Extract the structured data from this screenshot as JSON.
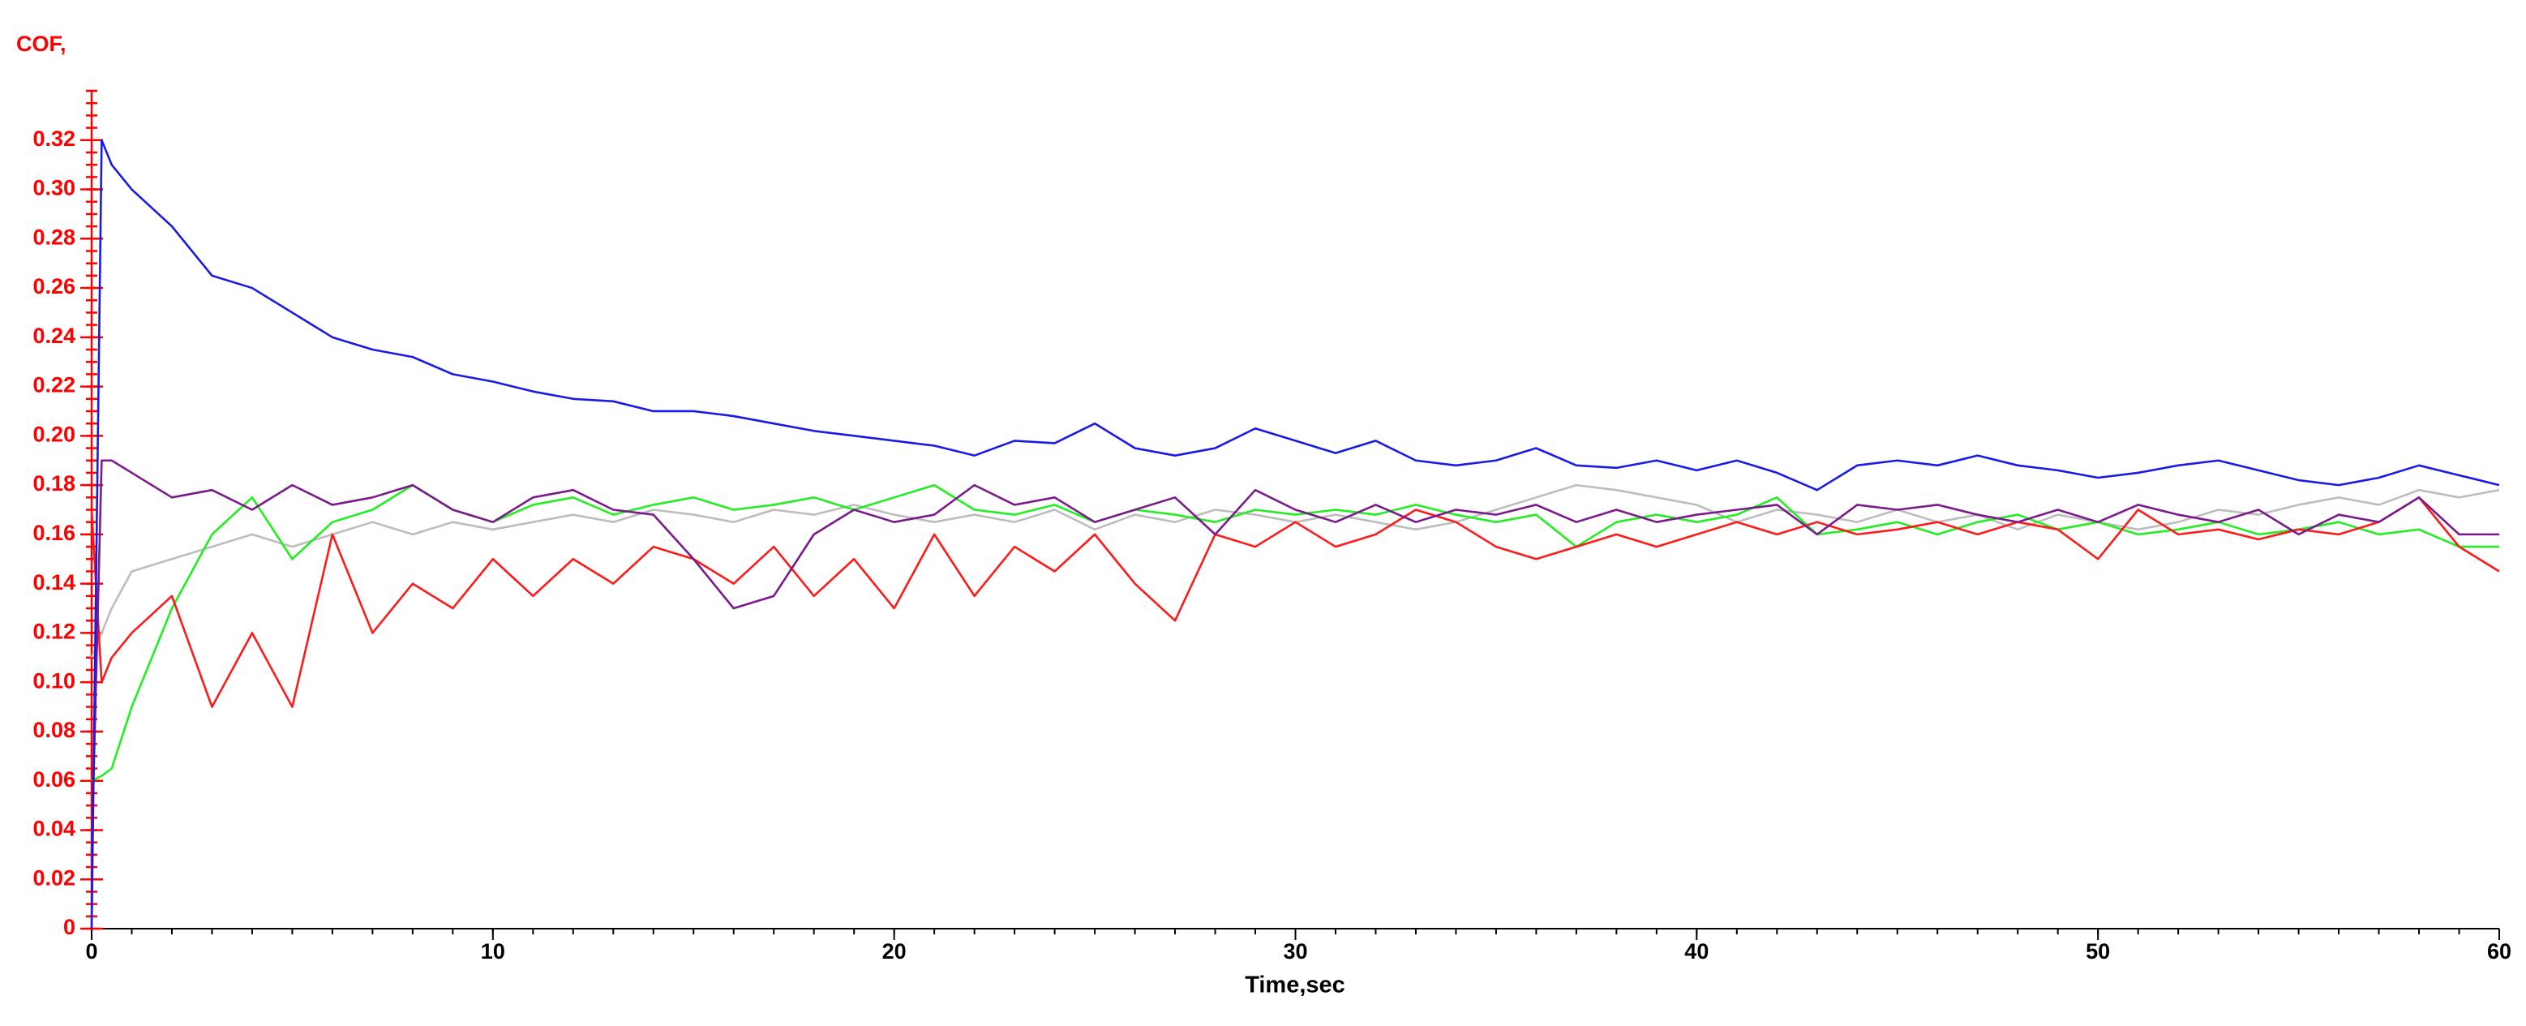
{
  "chart_data": {
    "type": "line",
    "y_label": "COF,",
    "x_label": "Time,sec",
    "xlim": [
      0,
      60
    ],
    "xticks": [
      0,
      10,
      20,
      30,
      40,
      50,
      60
    ],
    "ylim": [
      0,
      0.34
    ],
    "yticks": [
      0,
      0.02,
      0.04,
      0.06,
      0.08,
      {
        "value": 0.1,
        "label": "0.10"
      },
      0.12,
      0.14,
      0.16,
      0.18,
      {
        "value": 0.2,
        "label": "0.20"
      },
      0.22,
      0.24,
      0.26,
      0.28,
      {
        "value": 0.3,
        "label": "0.30"
      },
      0.32
    ],
    "x": [
      0,
      0.25,
      0.5,
      1,
      2,
      3,
      4,
      5,
      6,
      7,
      8,
      9,
      10,
      11,
      12,
      13,
      14,
      15,
      16,
      17,
      18,
      19,
      20,
      21,
      22,
      23,
      24,
      25,
      26,
      27,
      28,
      29,
      30,
      31,
      32,
      33,
      34,
      35,
      36,
      37,
      38,
      39,
      40,
      41,
      42,
      43,
      44,
      45,
      46,
      47,
      48,
      49,
      50,
      51,
      52,
      53,
      54,
      55,
      56,
      57,
      58,
      59,
      60
    ],
    "series": [
      {
        "color": "#bdbdbd",
        "values": [
          0.11,
          0.12,
          0.13,
          0.145,
          0.15,
          0.155,
          0.16,
          0.155,
          0.16,
          0.165,
          0.16,
          0.165,
          0.162,
          0.165,
          0.168,
          0.165,
          0.17,
          0.168,
          0.165,
          0.17,
          0.168,
          0.172,
          0.168,
          0.165,
          0.168,
          0.165,
          0.17,
          0.162,
          0.168,
          0.165,
          0.17,
          0.168,
          0.165,
          0.168,
          0.165,
          0.162,
          0.165,
          0.17,
          0.175,
          0.18,
          0.178,
          0.175,
          0.172,
          0.165,
          0.17,
          0.168,
          0.165,
          0.17,
          0.165,
          0.168,
          0.162,
          0.168,
          0.165,
          0.162,
          0.165,
          0.17,
          0.168,
          0.172,
          0.175,
          0.172,
          0.178,
          0.175,
          0.178
        ]
      },
      {
        "color": "#22ee22",
        "values": [
          0.06,
          0.062,
          0.065,
          0.09,
          0.13,
          0.16,
          0.175,
          0.15,
          0.165,
          0.17,
          0.18,
          0.17,
          0.165,
          0.172,
          0.175,
          0.168,
          0.172,
          0.175,
          0.17,
          0.172,
          0.175,
          0.17,
          0.175,
          0.18,
          0.17,
          0.168,
          0.172,
          0.165,
          0.17,
          0.168,
          0.165,
          0.17,
          0.168,
          0.17,
          0.168,
          0.172,
          0.168,
          0.165,
          0.168,
          0.155,
          0.165,
          0.168,
          0.165,
          0.168,
          0.175,
          0.16,
          0.162,
          0.165,
          0.16,
          0.165,
          0.168,
          0.162,
          0.165,
          0.16,
          0.162,
          0.165,
          0.16,
          0.162,
          0.165,
          0.16,
          0.162,
          0.155,
          0.155
        ]
      },
      {
        "color": "#ff1a1a",
        "values": [
          0.17,
          0.1,
          0.11,
          0.12,
          0.135,
          0.09,
          0.12,
          0.09,
          0.16,
          0.12,
          0.14,
          0.13,
          0.15,
          0.135,
          0.15,
          0.14,
          0.155,
          0.15,
          0.14,
          0.155,
          0.135,
          0.15,
          0.13,
          0.16,
          0.135,
          0.155,
          0.145,
          0.16,
          0.14,
          0.125,
          0.16,
          0.155,
          0.165,
          0.155,
          0.16,
          0.17,
          0.165,
          0.155,
          0.15,
          0.155,
          0.16,
          0.155,
          0.16,
          0.165,
          0.16,
          0.165,
          0.16,
          0.162,
          0.165,
          0.16,
          0.165,
          0.162,
          0.15,
          0.17,
          0.16,
          0.162,
          0.158,
          0.162,
          0.16,
          0.165,
          0.175,
          0.155,
          0.145
        ]
      },
      {
        "color": "#7b1a8b",
        "values": [
          0.03,
          0.19,
          0.19,
          0.185,
          0.175,
          0.178,
          0.17,
          0.18,
          0.172,
          0.175,
          0.18,
          0.17,
          0.165,
          0.175,
          0.178,
          0.17,
          0.168,
          0.15,
          0.13,
          0.135,
          0.16,
          0.17,
          0.165,
          0.168,
          0.18,
          0.172,
          0.175,
          0.165,
          0.17,
          0.175,
          0.16,
          0.178,
          0.17,
          0.165,
          0.172,
          0.165,
          0.17,
          0.168,
          0.172,
          0.165,
          0.17,
          0.165,
          0.168,
          0.17,
          0.172,
          0.16,
          0.172,
          0.17,
          0.172,
          0.168,
          0.165,
          0.17,
          0.165,
          0.172,
          0.168,
          0.165,
          0.17,
          0.16,
          0.168,
          0.165,
          0.175,
          0.16,
          0.16
        ]
      },
      {
        "color": "#1a1ae6",
        "values": [
          0,
          0.32,
          0.31,
          0.3,
          0.285,
          0.265,
          0.26,
          0.25,
          0.24,
          0.235,
          0.232,
          0.225,
          0.222,
          0.218,
          0.215,
          0.214,
          0.21,
          0.21,
          0.208,
          0.205,
          0.202,
          0.2,
          0.198,
          0.196,
          0.192,
          0.198,
          0.197,
          0.205,
          0.195,
          0.192,
          0.195,
          0.203,
          0.198,
          0.193,
          0.198,
          0.19,
          0.188,
          0.19,
          0.195,
          0.188,
          0.187,
          0.19,
          0.186,
          0.19,
          0.185,
          0.178,
          0.188,
          0.19,
          0.188,
          0.192,
          0.188,
          0.186,
          0.183,
          0.185,
          0.188,
          0.19,
          0.186,
          0.182,
          0.18,
          0.183,
          0.188,
          0.184,
          0.18
        ]
      }
    ]
  }
}
